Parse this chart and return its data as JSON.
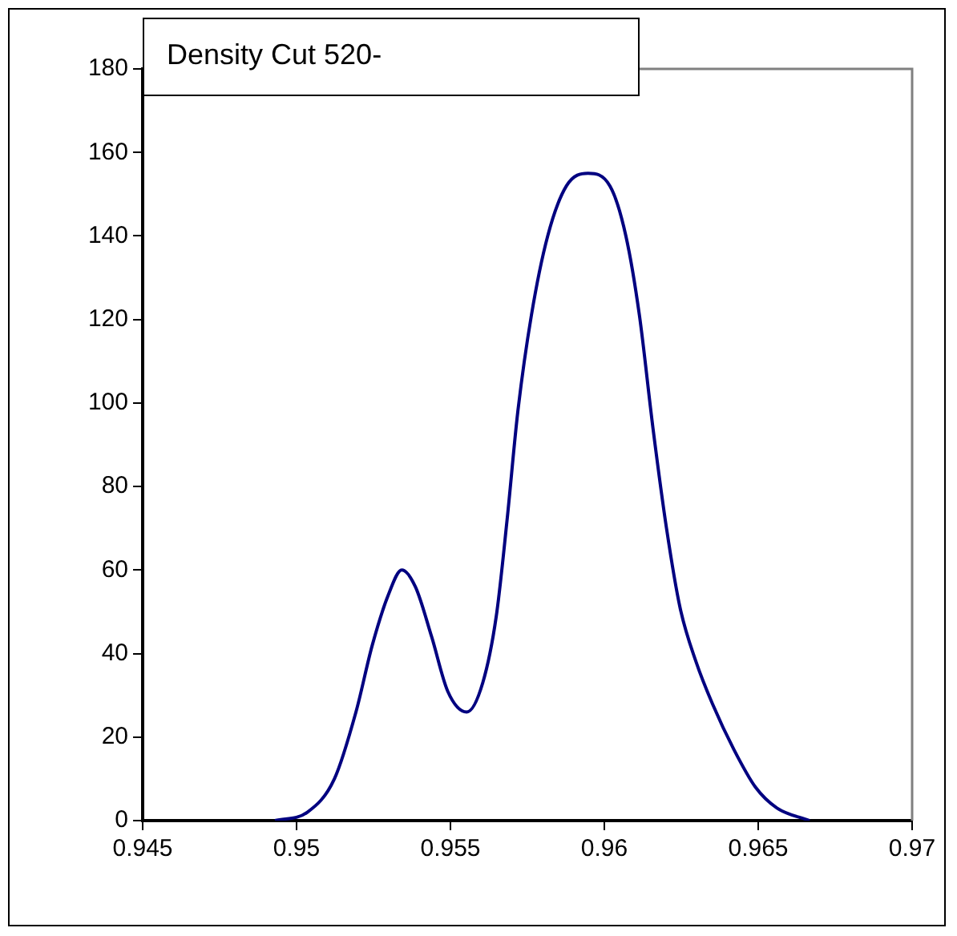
{
  "chart_data": {
    "type": "line",
    "title": "Density Cut 520-",
    "x": [
      0.9493,
      0.95035,
      0.95123,
      0.95193,
      0.95246,
      0.95298,
      0.95342,
      0.95386,
      0.95439,
      0.95491,
      0.95553,
      0.95605,
      0.95649,
      0.95684,
      0.95719,
      0.95763,
      0.95816,
      0.95877,
      0.95947,
      0.96018,
      0.9607,
      0.96114,
      0.96158,
      0.96202,
      0.96246,
      0.96298,
      0.96351,
      0.96421,
      0.96491,
      0.96561,
      0.96667
    ],
    "series": [
      {
        "color": "#000080",
        "values": [
          0,
          2,
          10,
          26,
          42,
          54,
          60,
          56,
          44,
          31,
          26,
          33,
          49,
          72,
          98,
          121,
          140,
          152,
          155,
          152,
          140,
          121,
          94,
          70,
          51,
          38,
          28,
          17,
          8,
          3,
          0
        ]
      }
    ],
    "xlim": [
      0.945,
      0.97
    ],
    "xticks": [
      {
        "value": 0.945,
        "label": "0.945"
      },
      {
        "value": 0.95,
        "label": "0.95"
      },
      {
        "value": 0.955,
        "label": "0.955"
      },
      {
        "value": 0.96,
        "label": "0.96"
      },
      {
        "value": 0.965,
        "label": "0.965"
      },
      {
        "value": 0.97,
        "label": "0.97"
      }
    ],
    "ylim": [
      0,
      180
    ],
    "yticks": [
      0,
      20,
      40,
      60,
      80,
      100,
      120,
      140,
      160,
      180
    ],
    "grid": false,
    "legend": false,
    "marker": "none",
    "line_style": "solid"
  }
}
